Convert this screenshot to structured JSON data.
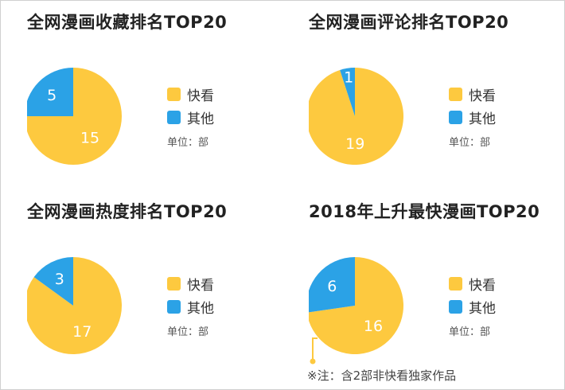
{
  "colors": {
    "kuaikan": "#FDC93F",
    "other": "#2BA2E6"
  },
  "chart_data": [
    {
      "type": "pie",
      "title": "全网漫画收藏排名TOP20",
      "slices": [
        {
          "name": "快看",
          "value": 15
        },
        {
          "name": "其他",
          "value": 5
        }
      ],
      "unit": "单位：部"
    },
    {
      "type": "pie",
      "title": "全网漫画评论排名TOP20",
      "slices": [
        {
          "name": "快看",
          "value": 19
        },
        {
          "name": "其他",
          "value": 1
        }
      ],
      "unit": "单位：部"
    },
    {
      "type": "pie",
      "title": "全网漫画热度排名TOP20",
      "slices": [
        {
          "name": "快看",
          "value": 17
        },
        {
          "name": "其他",
          "value": 3
        }
      ],
      "unit": "单位：部"
    },
    {
      "type": "pie",
      "title": "2018年上升最快漫画TOP20",
      "slices": [
        {
          "name": "快看",
          "value": 16
        },
        {
          "name": "其他",
          "value": 6
        }
      ],
      "unit": "单位：部",
      "note": "※注：含2部非快看独家作品"
    }
  ]
}
